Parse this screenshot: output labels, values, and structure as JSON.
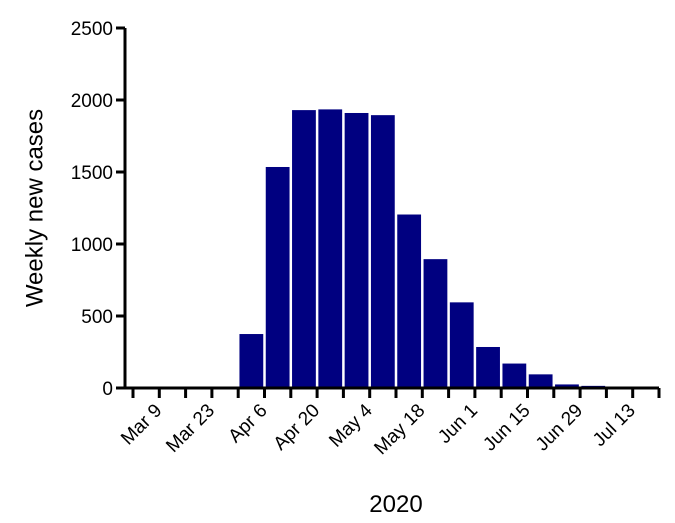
{
  "chart_data": {
    "type": "bar",
    "title": "",
    "xlabel": "2020",
    "ylabel": "Weekly new cases",
    "ylim": [
      0,
      2500
    ],
    "yticks": [
      0,
      500,
      1000,
      1500,
      2000,
      2500
    ],
    "x_tick_labels": [
      "Mar 9",
      "Mar 23",
      "Apr 6",
      "Apr 20",
      "May 4",
      "May 18",
      "Jun 1",
      "Jun 15",
      "Jun 29",
      "Jul 13"
    ],
    "categories": [
      "Mar 2",
      "Mar 9",
      "Mar 16",
      "Mar 23",
      "Mar 30",
      "Apr 6",
      "Apr 13",
      "Apr 20",
      "Apr 27",
      "May 4",
      "May 11",
      "May 18",
      "May 25",
      "Jun 1",
      "Jun 8",
      "Jun 15",
      "Jun 22",
      "Jun 29",
      "Jul 6",
      "Jul 13"
    ],
    "values": [
      0,
      0,
      2,
      8,
      380,
      1540,
      1935,
      1940,
      1915,
      1900,
      1210,
      900,
      600,
      290,
      175,
      100,
      30,
      20,
      8,
      5
    ],
    "grid": false,
    "legend": "none",
    "colors": {
      "bar": "#000080",
      "axis": "#000000"
    }
  }
}
